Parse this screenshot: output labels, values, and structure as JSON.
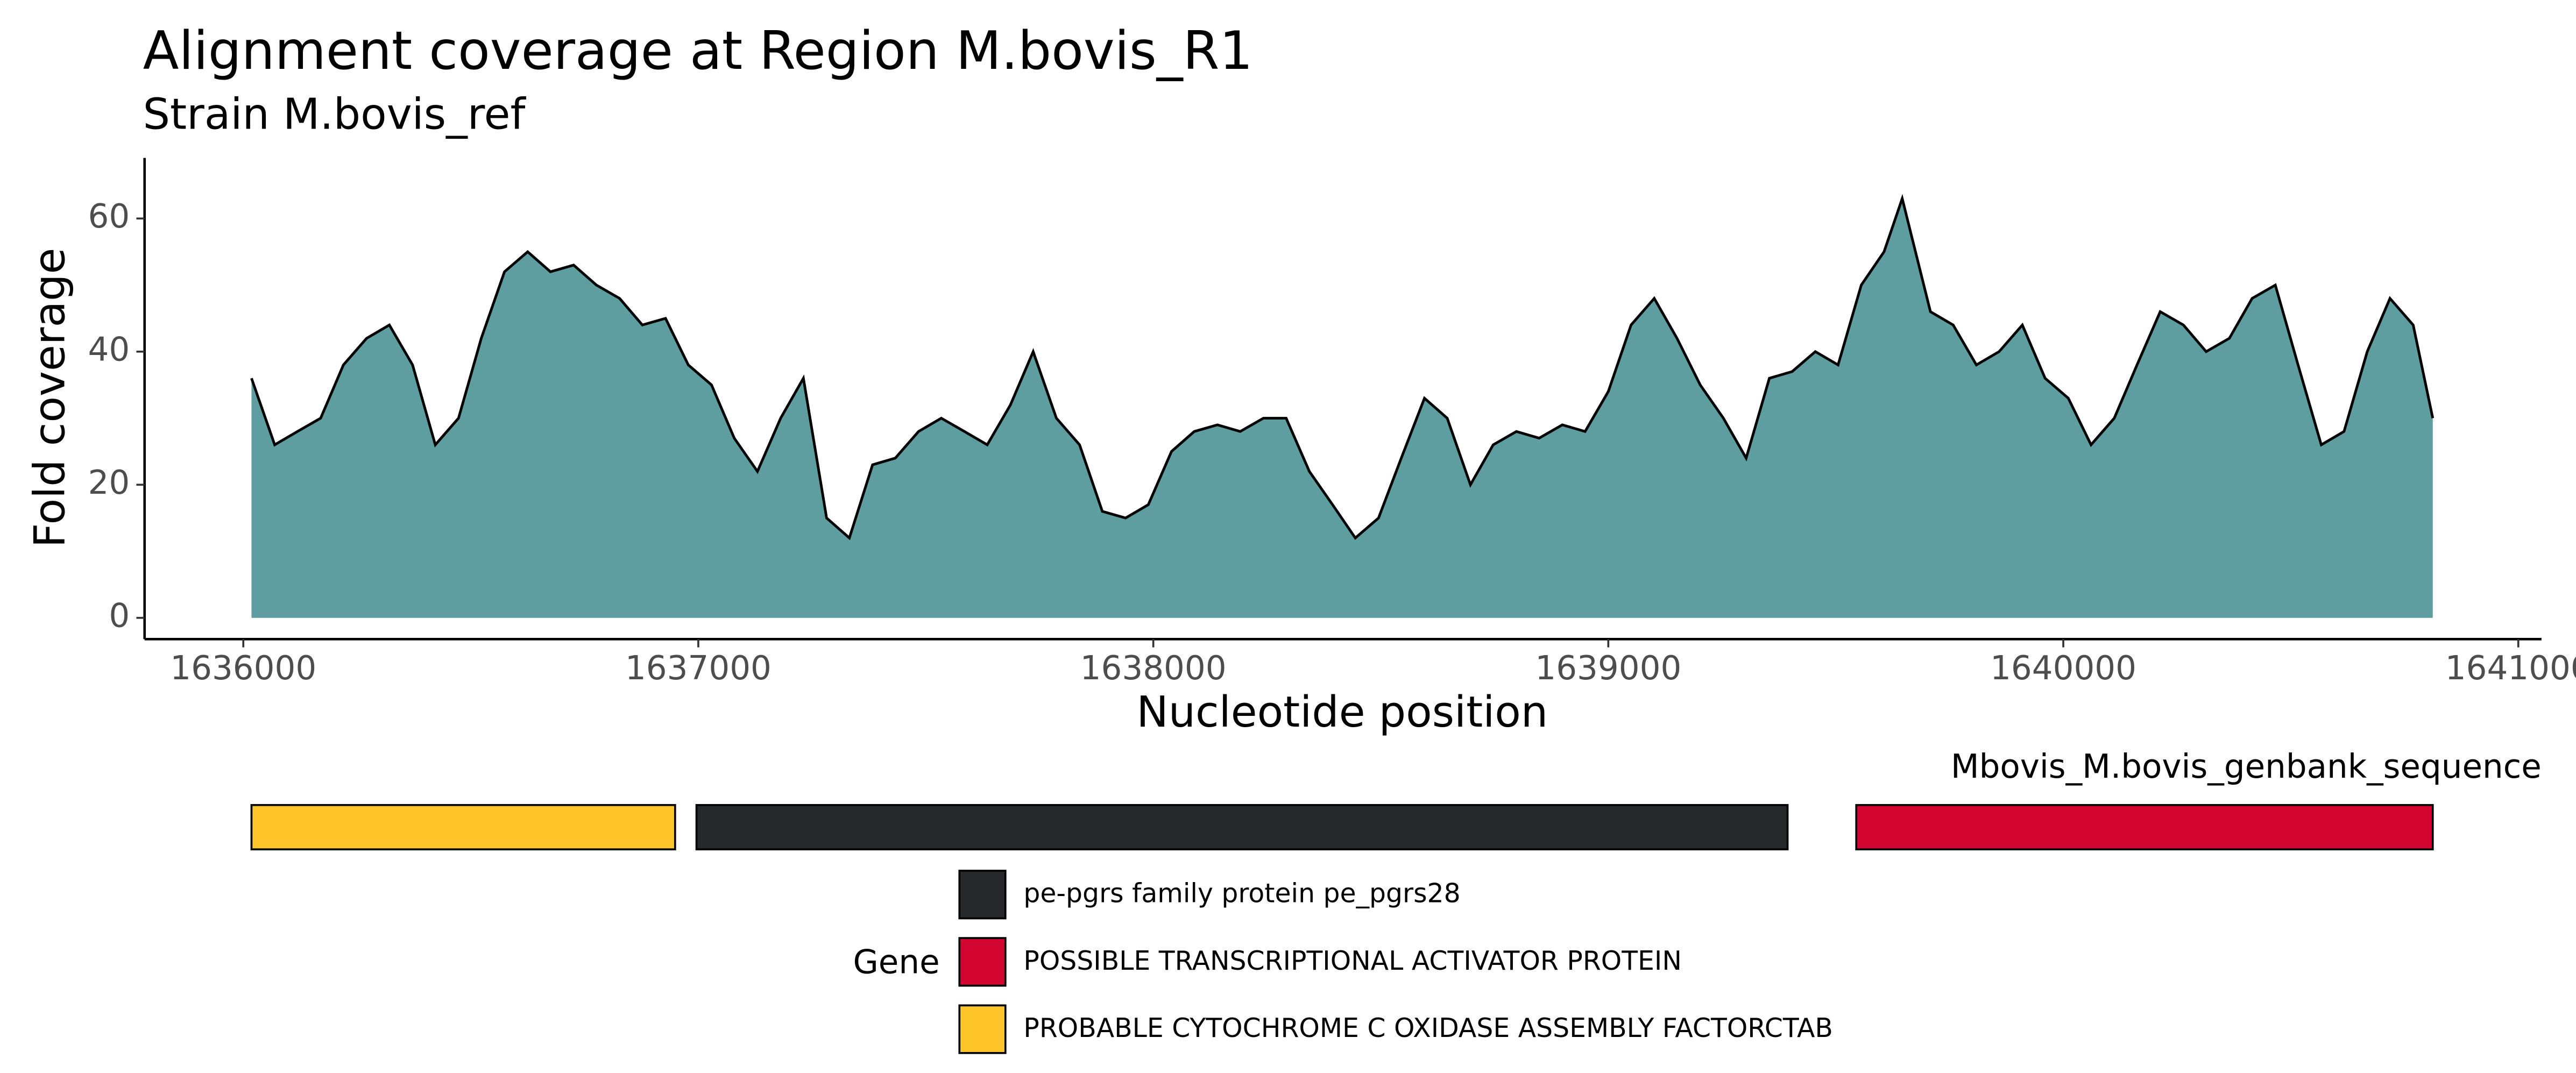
{
  "chart_data": [
    {
      "type": "area",
      "title": "Alignment coverage at Region M.bovis_R1",
      "subtitle": "Strain M.bovis_ref",
      "x_label": "Nucleotide position",
      "y_label": "Fold coverage",
      "fill": "#5f9ea0",
      "line_color": "#000000",
      "x": [
        1636018,
        1636069,
        1636119,
        1636170,
        1636220,
        1636271,
        1636321,
        1636372,
        1636422,
        1636473,
        1636523,
        1636574,
        1636625,
        1636675,
        1636726,
        1636776,
        1636827,
        1636877,
        1636928,
        1636978,
        1637029,
        1637079,
        1637130,
        1637181,
        1637231,
        1637282,
        1637332,
        1637383,
        1637433,
        1637484,
        1637534,
        1637585,
        1637635,
        1637686,
        1637736,
        1637787,
        1637838,
        1637888,
        1637939,
        1637989,
        1638040,
        1638090,
        1638141,
        1638191,
        1638242,
        1638292,
        1638343,
        1638394,
        1638444,
        1638495,
        1638545,
        1638596,
        1638646,
        1638697,
        1638747,
        1638798,
        1638848,
        1638899,
        1638949,
        1639000,
        1639050,
        1639101,
        1639151,
        1639202,
        1639253,
        1639303,
        1639354,
        1639404,
        1639455,
        1639505,
        1639556,
        1639606,
        1639646,
        1639708,
        1639758,
        1639809,
        1639859,
        1639910,
        1639960,
        1640011,
        1640061,
        1640112,
        1640162,
        1640213,
        1640264,
        1640314,
        1640365,
        1640415,
        1640466,
        1640516,
        1640567,
        1640617,
        1640668,
        1640718,
        1640769,
        1640812
      ],
      "values": [
        36,
        26,
        28,
        30,
        38,
        42,
        44,
        38,
        26,
        30,
        42,
        52,
        55,
        52,
        53,
        50,
        48,
        44,
        45,
        38,
        35,
        27,
        22,
        30,
        36,
        15,
        12,
        23,
        24,
        28,
        30,
        28,
        26,
        32,
        40,
        30,
        26,
        16,
        15,
        17,
        25,
        28,
        29,
        28,
        30,
        30,
        22,
        17,
        12,
        15,
        24,
        33,
        30,
        20,
        26,
        28,
        27,
        29,
        28,
        34,
        44,
        48,
        42,
        35,
        30,
        24,
        36,
        37,
        40,
        38,
        50,
        55,
        63,
        46,
        44,
        38,
        40,
        44,
        36,
        33,
        26,
        30,
        38,
        46,
        44,
        40,
        42,
        48,
        50,
        38,
        26,
        28,
        40,
        48,
        44,
        30
      ],
      "xlim": [
        1635783,
        1641051
      ],
      "ylim": [
        -3.2,
        69.1
      ],
      "xticks": [
        1636000,
        1637000,
        1638000,
        1639000,
        1640000,
        1641000
      ],
      "yticks": [
        0,
        20,
        40,
        60
      ]
    },
    {
      "type": "gene_track",
      "track_label": "Mbovis_M.bovis_genbank_sequence",
      "legend_title": "Gene",
      "xlim": [
        1635783,
        1641051
      ],
      "series": [
        {
          "name": "pe-pgrs family protein pe_pgrs28",
          "color": "#25292c",
          "start": 1636996,
          "end": 1639394
        },
        {
          "name": "POSSIBLE TRANSCRIPTIONAL ACTIVATOR PROTEIN",
          "color": "#d1052f",
          "start": 1639545,
          "end": 1640812
        },
        {
          "name": "PROBABLE CYTOCHROME C OXIDASE ASSEMBLY FACTORCTAB",
          "color": "#fdc52a",
          "start": 1636018,
          "end": 1636949
        }
      ]
    }
  ]
}
